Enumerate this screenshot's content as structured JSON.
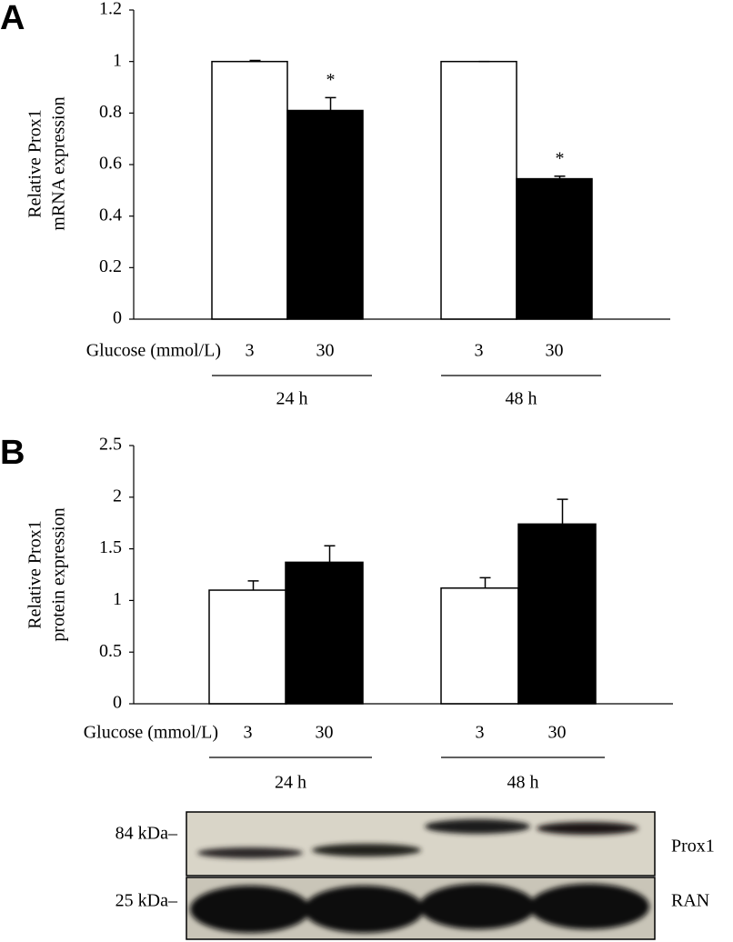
{
  "chart_data": [
    {
      "type": "bar",
      "panel": "A",
      "y_label": [
        "Relative Prox1",
        "mRNA expression"
      ],
      "x_label": "Glucose (mmol/L)",
      "categories": [
        "3",
        "30",
        "3",
        "30"
      ],
      "groups": [
        "24 h",
        "48 h"
      ],
      "values": [
        1.0,
        0.81,
        1.0,
        0.545
      ],
      "errors": [
        0.004,
        0.05,
        0.0,
        0.01
      ],
      "colors": [
        "#ffffff",
        "#000000",
        "#ffffff",
        "#000000"
      ],
      "significance": [
        null,
        "*",
        null,
        "*"
      ],
      "ylim": [
        0,
        1.2
      ],
      "yticks": [
        0,
        0.2,
        0.4,
        0.6,
        0.8,
        1,
        1.2
      ]
    },
    {
      "type": "bar",
      "panel": "B",
      "y_label": [
        "Relative Prox1",
        "protein expression"
      ],
      "x_label": "Glucose (mmol/L)",
      "categories": [
        "3",
        "30",
        "3",
        "30"
      ],
      "groups": [
        "24 h",
        "48 h"
      ],
      "values": [
        1.1,
        1.37,
        1.12,
        1.74
      ],
      "errors": [
        0.09,
        0.16,
        0.1,
        0.24
      ],
      "colors": [
        "#ffffff",
        "#000000",
        "#ffffff",
        "#000000"
      ],
      "significance": [
        null,
        null,
        null,
        null
      ],
      "ylim": [
        0,
        2.5
      ],
      "yticks": [
        0,
        0.5,
        1,
        1.5,
        2,
        2.5
      ]
    }
  ],
  "blot": {
    "markers": [
      "84 kDa–",
      "25 kDa–"
    ],
    "proteins": [
      "Prox1",
      "RAN"
    ]
  }
}
